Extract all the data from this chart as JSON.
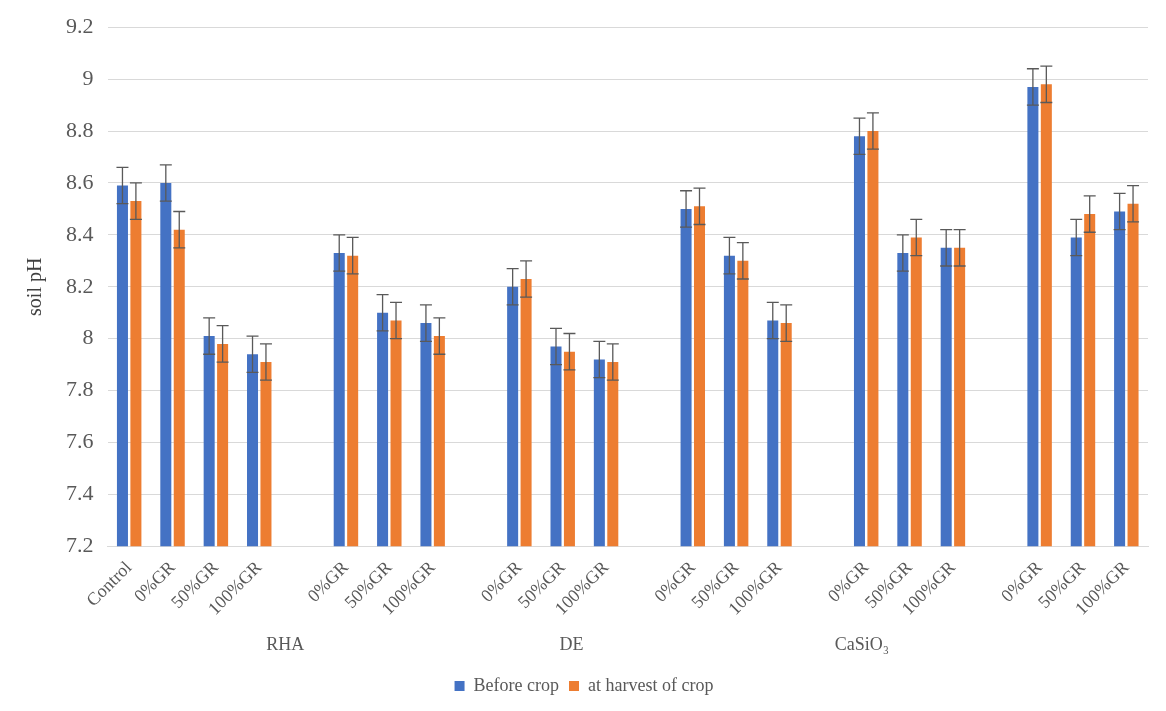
{
  "chart_data": {
    "type": "bar",
    "ylabel": "soil pH",
    "categories": [
      "Control",
      "0%GR",
      "50%GR",
      "100%GR",
      null,
      "0%GR",
      "50%GR",
      "100%GR",
      null,
      "0%GR",
      "50%GR",
      "100%GR",
      null,
      "0%GR",
      "50%GR",
      "100%GR",
      null,
      "0%GR",
      "50%GR",
      "100%GR",
      null,
      "0%GR",
      "50%GR",
      "100%GR"
    ],
    "series": [
      {
        "name": "Before crop",
        "color": "#4472c4",
        "values": [
          8.59,
          8.6,
          8.01,
          7.94,
          null,
          8.33,
          8.1,
          8.06,
          null,
          8.2,
          7.97,
          7.92,
          null,
          8.5,
          8.32,
          8.07,
          null,
          8.78,
          8.33,
          8.35,
          null,
          8.97,
          8.39,
          8.49
        ],
        "errors": [
          0.07,
          0.07,
          0.07,
          0.07,
          null,
          0.07,
          0.07,
          0.07,
          null,
          0.07,
          0.07,
          0.07,
          null,
          0.07,
          0.07,
          0.07,
          null,
          0.07,
          0.07,
          0.07,
          null,
          0.07,
          0.07,
          0.07
        ]
      },
      {
        "name": "at harvest of crop",
        "color": "#ed7d31",
        "values": [
          8.53,
          8.42,
          7.98,
          7.91,
          null,
          8.32,
          8.07,
          8.01,
          null,
          8.23,
          7.95,
          7.91,
          null,
          8.51,
          8.3,
          8.06,
          null,
          8.8,
          8.39,
          8.35,
          null,
          8.98,
          8.48,
          8.52
        ],
        "errors": [
          0.07,
          0.07,
          0.07,
          0.07,
          null,
          0.07,
          0.07,
          0.07,
          null,
          0.07,
          0.07,
          0.07,
          null,
          0.07,
          0.07,
          0.07,
          null,
          0.07,
          0.07,
          0.07,
          null,
          0.07,
          0.07,
          0.07
        ]
      }
    ],
    "ylim": [
      7.2,
      9.2
    ],
    "yticks": [
      7.2,
      7.4,
      7.6,
      7.8,
      8,
      8.2,
      8.4,
      8.6,
      8.8,
      9,
      9.2
    ],
    "grid": "y",
    "legend": "bottom",
    "annotations": [
      "RHA",
      "DE",
      "CaSiO₃"
    ]
  }
}
